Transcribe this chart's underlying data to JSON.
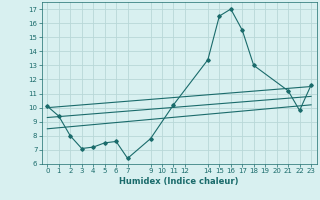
{
  "xlabel": "Humidex (Indice chaleur)",
  "background_color": "#d8f0f0",
  "grid_color": "#b8d8d8",
  "line_color": "#1a6b6b",
  "xlim": [
    -0.5,
    23.5
  ],
  "ylim": [
    6,
    17.5
  ],
  "xticks": [
    0,
    1,
    2,
    3,
    4,
    5,
    6,
    7,
    9,
    10,
    11,
    12,
    14,
    15,
    16,
    17,
    18,
    19,
    20,
    21,
    22,
    23
  ],
  "yticks": [
    6,
    7,
    8,
    9,
    10,
    11,
    12,
    13,
    14,
    15,
    16,
    17
  ],
  "main_x": [
    0,
    1,
    2,
    3,
    4,
    5,
    6,
    7,
    9,
    11,
    14,
    15,
    16,
    17,
    18,
    21,
    22,
    23
  ],
  "main_y": [
    10.1,
    9.4,
    8.0,
    7.1,
    7.2,
    7.5,
    7.6,
    6.4,
    7.8,
    10.2,
    13.4,
    16.5,
    17.0,
    15.5,
    13.0,
    11.2,
    9.8,
    11.6
  ],
  "line1_x": [
    0,
    23
  ],
  "line1_y": [
    10.0,
    11.5
  ],
  "line2_x": [
    0,
    23
  ],
  "line2_y": [
    9.3,
    10.8
  ],
  "line3_x": [
    0,
    23
  ],
  "line3_y": [
    8.5,
    10.2
  ]
}
